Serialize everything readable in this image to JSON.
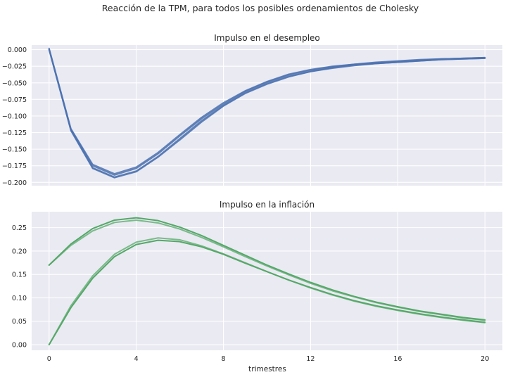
{
  "figure": {
    "suptitle": "Reacción de la TPM, para todos los posibles ordenamientos de Cholesky",
    "xlabel": "trimestres"
  },
  "colors": {
    "background": "#eaeaf2",
    "grid": "#ffffff",
    "unemployment_series": "#4c72b0",
    "inflation_series": "#55a868"
  },
  "chart_data": [
    {
      "type": "line",
      "title": "Impulso en el desempleo",
      "xlim": [
        -0.8,
        20.8
      ],
      "ylim": [
        -0.205,
        0.007
      ],
      "xticks": [
        0,
        4,
        8,
        12,
        16,
        20
      ],
      "show_xticklabels": false,
      "yticks": [
        0.0,
        -0.025,
        -0.05,
        -0.075,
        -0.1,
        -0.125,
        -0.15,
        -0.175,
        -0.2
      ],
      "ytick_labels": [
        "0.000",
        "−0.025",
        "−0.050",
        "−0.075",
        "−0.100",
        "−0.125",
        "−0.150",
        "−0.175",
        "−0.200"
      ],
      "grid": true,
      "x": [
        0,
        1,
        2,
        3,
        4,
        5,
        6,
        7,
        8,
        9,
        10,
        11,
        12,
        13,
        14,
        15,
        16,
        17,
        18,
        19,
        20
      ],
      "series": [
        {
          "color": "#4c72b0",
          "values": [
            0.002,
            -0.119,
            -0.173,
            -0.187,
            -0.177,
            -0.155,
            -0.128,
            -0.102,
            -0.08,
            -0.062,
            -0.048,
            -0.037,
            -0.03,
            -0.025,
            -0.022,
            -0.019,
            -0.017,
            -0.015,
            -0.014,
            -0.013,
            -0.012
          ]
        },
        {
          "color": "#4c72b0",
          "values": [
            0.0,
            -0.122,
            -0.179,
            -0.193,
            -0.184,
            -0.162,
            -0.136,
            -0.109,
            -0.085,
            -0.066,
            -0.052,
            -0.041,
            -0.033,
            -0.028,
            -0.024,
            -0.021,
            -0.019,
            -0.017,
            -0.015,
            -0.014,
            -0.013
          ]
        },
        {
          "color": "#4c72b0",
          "values": [
            0.001,
            -0.12,
            -0.175,
            -0.189,
            -0.179,
            -0.157,
            -0.13,
            -0.104,
            -0.082,
            -0.063,
            -0.049,
            -0.038,
            -0.031,
            -0.026,
            -0.022,
            -0.02,
            -0.018,
            -0.016,
            -0.014,
            -0.013,
            -0.012
          ]
        },
        {
          "color": "#4c72b0",
          "values": [
            0.0,
            -0.121,
            -0.178,
            -0.192,
            -0.183,
            -0.161,
            -0.134,
            -0.107,
            -0.084,
            -0.065,
            -0.051,
            -0.04,
            -0.033,
            -0.027,
            -0.023,
            -0.021,
            -0.019,
            -0.017,
            -0.015,
            -0.014,
            -0.013
          ]
        }
      ]
    },
    {
      "type": "line",
      "title": "Impulso en la inflación",
      "xlim": [
        -0.8,
        20.8
      ],
      "ylim": [
        -0.012,
        0.284
      ],
      "xticks": [
        0,
        4,
        8,
        12,
        16,
        20
      ],
      "xtick_labels": [
        "0",
        "4",
        "8",
        "12",
        "16",
        "20"
      ],
      "show_xticklabels": true,
      "yticks": [
        0.0,
        0.05,
        0.1,
        0.15,
        0.2,
        0.25
      ],
      "ytick_labels": [
        "0.00",
        "0.05",
        "0.10",
        "0.15",
        "0.20",
        "0.25"
      ],
      "grid": true,
      "x": [
        0,
        1,
        2,
        3,
        4,
        5,
        6,
        7,
        8,
        9,
        10,
        11,
        12,
        13,
        14,
        15,
        16,
        17,
        18,
        19,
        20
      ],
      "series": [
        {
          "color": "#55a868",
          "opacity": 1.0,
          "values": [
            0.17,
            0.215,
            0.248,
            0.266,
            0.271,
            0.265,
            0.251,
            0.233,
            0.212,
            0.191,
            0.17,
            0.151,
            0.133,
            0.117,
            0.103,
            0.091,
            0.081,
            0.072,
            0.065,
            0.058,
            0.053
          ]
        },
        {
          "color": "#55a868",
          "opacity": 0.75,
          "values": [
            0.17,
            0.212,
            0.243,
            0.261,
            0.266,
            0.26,
            0.247,
            0.229,
            0.209,
            0.188,
            0.168,
            0.149,
            0.131,
            0.115,
            0.102,
            0.09,
            0.08,
            0.071,
            0.064,
            0.057,
            0.052
          ]
        },
        {
          "color": "#55a868",
          "opacity": 0.75,
          "values": [
            0.0,
            0.083,
            0.147,
            0.193,
            0.219,
            0.228,
            0.224,
            0.211,
            0.194,
            0.175,
            0.156,
            0.138,
            0.121,
            0.106,
            0.093,
            0.082,
            0.073,
            0.065,
            0.058,
            0.052,
            0.047
          ]
        },
        {
          "color": "#55a868",
          "opacity": 1.0,
          "values": [
            0.0,
            0.079,
            0.142,
            0.188,
            0.214,
            0.223,
            0.22,
            0.209,
            0.193,
            0.174,
            0.156,
            0.138,
            0.122,
            0.107,
            0.094,
            0.083,
            0.074,
            0.066,
            0.059,
            0.053,
            0.048
          ]
        }
      ]
    }
  ]
}
